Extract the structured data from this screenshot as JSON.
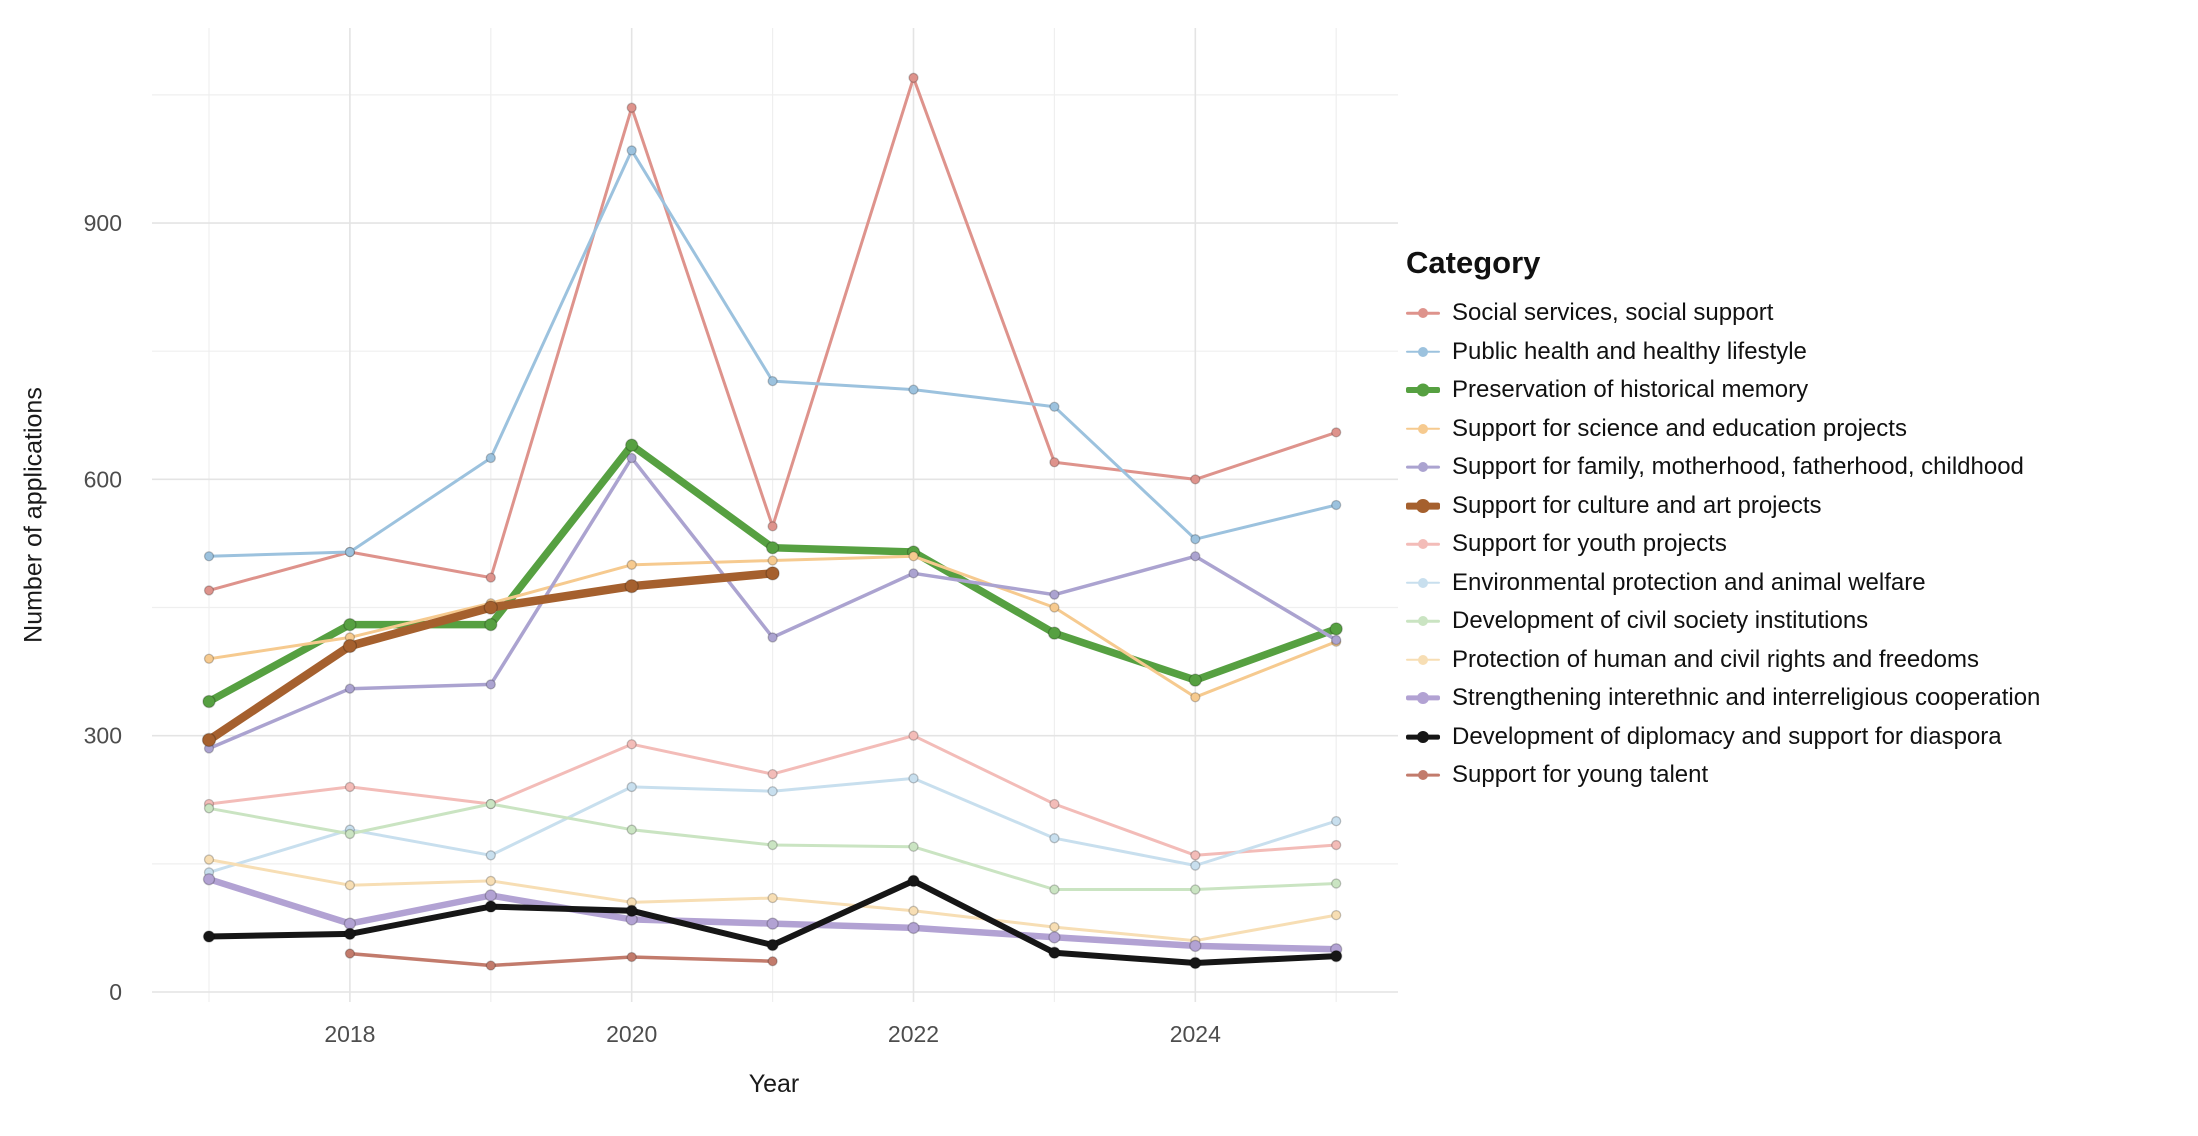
{
  "chart_data": {
    "type": "line",
    "xlabel": "Year",
    "ylabel": "Number of applications",
    "legend_title": "Category",
    "legend_position": "right",
    "grid": true,
    "x": [
      2017,
      2018,
      2019,
      2020,
      2021,
      2022,
      2023,
      2024,
      2025
    ],
    "x_ticks": [
      2018,
      2020,
      2022,
      2024
    ],
    "y_ticks": [
      0,
      300,
      600,
      900
    ],
    "x_minor_ticks": [
      2017,
      2019,
      2021,
      2023,
      2025
    ],
    "y_minor_ticks": [
      150,
      450,
      750,
      1050
    ],
    "ylim": [
      0,
      1130
    ],
    "series": [
      {
        "name": "Social services, social support",
        "color": "#DE938C",
        "width": 3,
        "dot": 9,
        "values": [
          470,
          515,
          485,
          1035,
          545,
          1070,
          620,
          600,
          655
        ]
      },
      {
        "name": "Public health and healthy lifestyle",
        "color": "#9CC2DE",
        "width": 3,
        "dot": 9,
        "values": [
          510,
          515,
          625,
          985,
          715,
          705,
          685,
          530,
          570
        ]
      },
      {
        "name": "Preservation of historical memory",
        "color": "#56A041",
        "width": 7.5,
        "dot": 12,
        "values": [
          340,
          430,
          430,
          640,
          520,
          515,
          420,
          365,
          425
        ]
      },
      {
        "name": "Support for science and education projects",
        "color": "#F6CA8F",
        "width": 3,
        "dot": 9,
        "values": [
          390,
          415,
          455,
          500,
          505,
          510,
          450,
          345,
          410
        ]
      },
      {
        "name": "Support for family, motherhood, fatherhood, childhood",
        "color": "#ABA3D0",
        "width": 3.5,
        "dot": 9,
        "values": [
          285,
          355,
          360,
          625,
          415,
          490,
          465,
          510,
          412
        ]
      },
      {
        "name": "Support for culture and art projects",
        "color": "#A5602E",
        "width": 8.5,
        "dot": 13,
        "values": [
          295,
          405,
          450,
          475,
          490,
          null,
          null,
          null,
          null
        ]
      },
      {
        "name": "Support for youth projects",
        "color": "#F3BCB8",
        "width": 3,
        "dot": 9,
        "values": [
          220,
          240,
          220,
          290,
          255,
          300,
          220,
          160,
          172
        ]
      },
      {
        "name": "Environmental protection and animal welfare",
        "color": "#C8DFEE",
        "width": 3,
        "dot": 9,
        "values": [
          140,
          190,
          160,
          240,
          235,
          250,
          180,
          148,
          200
        ]
      },
      {
        "name": "Development of civil society institutions",
        "color": "#CAE4C2",
        "width": 3,
        "dot": 9,
        "values": [
          215,
          185,
          220,
          190,
          172,
          170,
          120,
          120,
          127
        ]
      },
      {
        "name": "Protection of human and civil rights and freedoms",
        "color": "#F7DEB4",
        "width": 3,
        "dot": 9,
        "values": [
          155,
          125,
          130,
          105,
          110,
          95,
          76,
          60,
          90
        ]
      },
      {
        "name": "Strengthening interethnic and interreligious cooperation",
        "color": "#B2A2D3",
        "width": 6.5,
        "dot": 11,
        "values": [
          132,
          80,
          113,
          85,
          80,
          75,
          64,
          54,
          50
        ]
      },
      {
        "name": "Development of diplomacy and support for diaspora",
        "color": "#161616",
        "width": 6,
        "dot": 11,
        "values": [
          65,
          68,
          100,
          95,
          55,
          130,
          46,
          34,
          42
        ]
      },
      {
        "name": "Support for young talent",
        "color": "#C27B6C",
        "width": 3.5,
        "dot": 9,
        "values": [
          null,
          45,
          31,
          41,
          36,
          null,
          null,
          null,
          null
        ]
      }
    ]
  },
  "style": {
    "grid_major_color": "#E4E4E4",
    "grid_minor_color": "#EFEFEF",
    "tick_label_color": "#4d4d4d",
    "background": "#ffffff"
  }
}
